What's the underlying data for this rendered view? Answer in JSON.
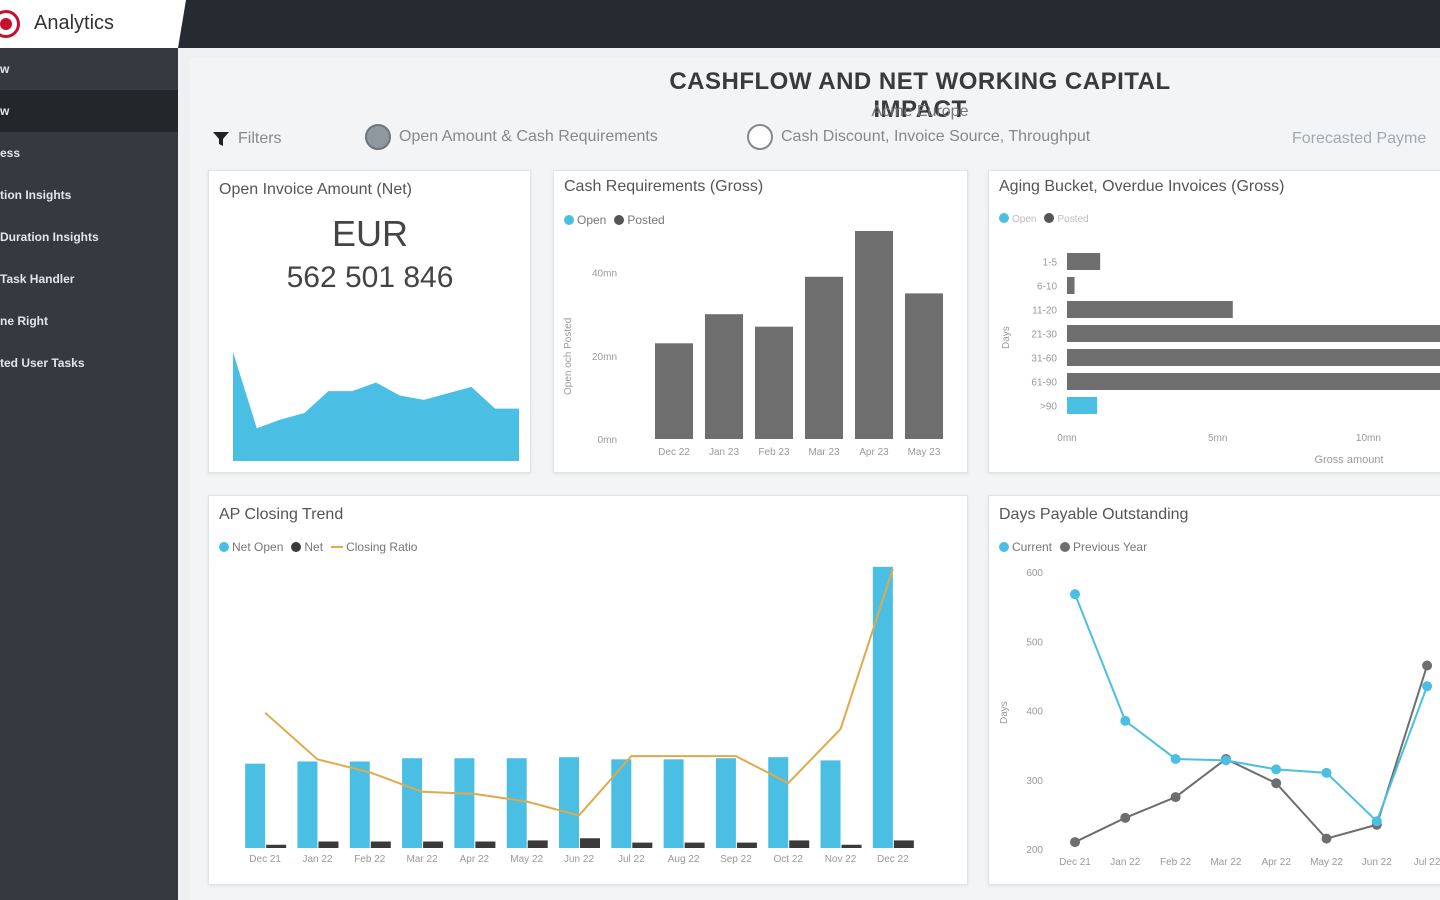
{
  "app": {
    "name": "Analytics",
    "logo_icon": "record-icon",
    "brand_color": "#c8102e"
  },
  "sidebar": {
    "items": [
      {
        "label": "w",
        "active": false
      },
      {
        "label": "w",
        "active": true
      },
      {
        "label": "ess",
        "active": false
      },
      {
        "label": "tion Insights",
        "active": false
      },
      {
        "label": "Duration Insights",
        "active": false
      },
      {
        "label": "Task Handler",
        "active": false
      },
      {
        "label": "ne Right",
        "active": false
      },
      {
        "label": "ted User Tasks",
        "active": false
      }
    ]
  },
  "report": {
    "title": "CASHFLOW AND NET WORKING CAPITAL IMPACT",
    "subtitle": "Acme Europe",
    "filters_label": "Filters",
    "filter_icon": "funnel-icon",
    "views": [
      {
        "label": "Open Amount & Cash Requirements",
        "selected": true
      },
      {
        "label": "Cash Discount, Invoice Source, Throughput",
        "selected": false
      }
    ],
    "forecast_label": "Forecasted Payme"
  },
  "colors": {
    "open": "#4bbfe3",
    "posted": "#6e6e6e",
    "net": "#3a3a3a",
    "ratio": "#e0a94a"
  },
  "cards": {
    "open_invoice": {
      "title": "Open Invoice Amount (Net)",
      "currency": "EUR",
      "value": "562 501 846"
    },
    "cash_requirements": {
      "title": "Cash Requirements (Gross)",
      "legend": [
        "Open",
        "Posted"
      ]
    },
    "aging_bucket": {
      "title": "Aging Bucket, Overdue Invoices (Gross)",
      "legend": [
        "Open",
        "Posted"
      ]
    },
    "ap_closing": {
      "title": "AP Closing Trend",
      "legend": [
        "Net Open",
        "Net",
        "Closing Ratio"
      ]
    },
    "dpo": {
      "title": "Days Payable Outstanding",
      "legend": [
        "Current",
        "Previous Year"
      ]
    }
  },
  "chart_data": [
    {
      "type": "area",
      "id": "open_invoice_sparkline",
      "x": [
        1,
        2,
        3,
        4,
        5,
        6,
        7,
        8,
        9,
        10,
        11,
        12,
        13
      ],
      "values": [
        1.0,
        0.3,
        0.38,
        0.44,
        0.64,
        0.64,
        0.72,
        0.6,
        0.56,
        0.62,
        0.68,
        0.48,
        0.48
      ],
      "ylim": [
        0,
        1.1
      ]
    },
    {
      "type": "bar",
      "id": "cash_requirements",
      "categories": [
        "Dec 22",
        "Jan 23",
        "Feb 23",
        "Mar 23",
        "Apr 23",
        "May 23"
      ],
      "series": [
        {
          "name": "Posted",
          "values": [
            23,
            30,
            27,
            39,
            50,
            35
          ]
        }
      ],
      "ylabel": "Open och Posted",
      "yticks": [
        "0mn",
        "20mn",
        "40mn"
      ],
      "ylim": [
        0,
        50
      ]
    },
    {
      "type": "bar",
      "id": "aging_bucket",
      "orientation": "horizontal",
      "categories": [
        "1-5",
        "6-10",
        "11-20",
        "21-30",
        "31-60",
        "61-90",
        ">90"
      ],
      "series": [
        {
          "name": "Posted",
          "values": [
            1.1,
            0.25,
            5.5,
            14,
            14,
            13,
            0
          ]
        },
        {
          "name": "Open",
          "values": [
            0,
            0,
            0,
            0,
            0,
            0,
            1.0
          ]
        }
      ],
      "xlabel": "Gross amount",
      "ylabel": "Days",
      "xticks": [
        "0mn",
        "5mn",
        "10mn"
      ],
      "xlim": [
        0,
        14
      ]
    },
    {
      "type": "bar",
      "id": "ap_closing_trend",
      "categories": [
        "Dec 21",
        "Jan 22",
        "Feb 22",
        "Mar 22",
        "Apr 22",
        "May 22",
        "Jun 22",
        "Jul 22",
        "Aug 22",
        "Sep 22",
        "Oct 22",
        "Nov 22",
        "Dec 22"
      ],
      "series": [
        {
          "name": "Net Open",
          "values": [
            78,
            80,
            80,
            83,
            83,
            83,
            84,
            82,
            82,
            83,
            84,
            81,
            260
          ]
        },
        {
          "name": "Net",
          "values": [
            3,
            6,
            6,
            6,
            6,
            7,
            9,
            5,
            5,
            5,
            7,
            3,
            7
          ]
        },
        {
          "name": "Closing Ratio",
          "values": [
            125,
            82,
            70,
            52,
            50,
            43,
            30,
            85,
            85,
            85,
            60,
            110,
            258
          ]
        }
      ],
      "ylim": [
        0,
        270
      ]
    },
    {
      "type": "line",
      "id": "days_payable_outstanding",
      "categories": [
        "Dec 21",
        "Jan 22",
        "Feb 22",
        "Mar 22",
        "Apr 22",
        "May 22",
        "Jun 22",
        "Jul 22"
      ],
      "series": [
        {
          "name": "Current",
          "values": [
            568,
            385,
            330,
            328,
            315,
            310,
            240,
            435
          ]
        },
        {
          "name": "Previous Year",
          "values": [
            210,
            245,
            275,
            330,
            295,
            215,
            235,
            465
          ]
        }
      ],
      "ylabel": "Days",
      "yticks": [
        "200",
        "300",
        "400",
        "500",
        "600"
      ],
      "ylim": [
        200,
        600
      ]
    }
  ]
}
